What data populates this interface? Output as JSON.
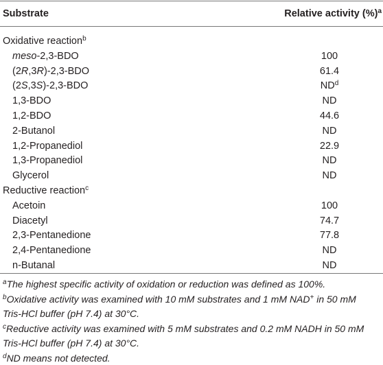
{
  "table": {
    "header": [
      [
        "Substrate"
      ],
      [
        "Relative activity (%)",
        {
          "t": "a",
          "sup": true
        }
      ]
    ],
    "rows": [
      {
        "section": true,
        "cells": [
          [
            "Oxidative reaction",
            {
              "t": "b",
              "sup": true
            }
          ]
        ]
      },
      {
        "cells": [
          [
            {
              "t": "meso",
              "italic": true
            },
            "-2,3-BDO"
          ],
          [
            100
          ]
        ]
      },
      {
        "cells": [
          [
            "(2",
            {
              "t": "R",
              "italic": true
            },
            ",3",
            {
              "t": "R",
              "italic": true
            },
            ")-2,3-BDO"
          ],
          [
            61.4
          ]
        ]
      },
      {
        "cells": [
          [
            "(2",
            {
              "t": "S",
              "italic": true
            },
            ",3",
            {
              "t": "S",
              "italic": true
            },
            ")-2,3-BDO"
          ],
          [
            "ND",
            {
              "t": "d",
              "sup": true
            }
          ]
        ]
      },
      {
        "cells": [
          [
            "1,3-BDO"
          ],
          [
            "ND"
          ]
        ]
      },
      {
        "cells": [
          [
            "1,2-BDO"
          ],
          [
            44.6
          ]
        ]
      },
      {
        "cells": [
          [
            "2-Butanol"
          ],
          [
            "ND"
          ]
        ]
      },
      {
        "cells": [
          [
            "1,2-Propanediol"
          ],
          [
            22.9
          ]
        ]
      },
      {
        "cells": [
          [
            "1,3-Propanediol"
          ],
          [
            "ND"
          ]
        ]
      },
      {
        "cells": [
          [
            "Glycerol"
          ],
          [
            "ND"
          ]
        ]
      },
      {
        "section": true,
        "cells": [
          [
            "Reductive reaction",
            {
              "t": "c",
              "sup": true
            }
          ]
        ]
      },
      {
        "cells": [
          [
            "Acetoin"
          ],
          [
            100
          ]
        ]
      },
      {
        "cells": [
          [
            "Diacetyl"
          ],
          [
            74.7
          ]
        ]
      },
      {
        "cells": [
          [
            "2,3-Pentanedione"
          ],
          [
            77.8
          ]
        ]
      },
      {
        "cells": [
          [
            "2,4-Pentanedione"
          ],
          [
            "ND"
          ]
        ]
      },
      {
        "cells": [
          [
            "n-Butanal"
          ],
          [
            "ND"
          ]
        ]
      }
    ],
    "footnotes": [
      [
        [
          {
            "t": "a",
            "sup": true
          },
          "The highest specific activity of oxidation or reduction was defined as 100%."
        ]
      ],
      [
        [
          {
            "t": "b",
            "sup": true
          },
          "Oxidative activity was examined with 10 mM substrates and 1 mM NAD",
          {
            "t": "+",
            "sup": true
          },
          " in 50 mM"
        ],
        [
          "Tris-HCl buffer (pH 7.4) at 30°C."
        ]
      ],
      [
        [
          {
            "t": "c",
            "sup": true
          },
          "Reductive activity was examined with 5 mM substrates and 0.2 mM NADH in 50 mM"
        ],
        [
          "Tris-HCl buffer (pH 7.4) at 30°C."
        ]
      ],
      [
        [
          {
            "t": "d",
            "sup": true
          },
          "ND means not detected."
        ]
      ]
    ]
  }
}
